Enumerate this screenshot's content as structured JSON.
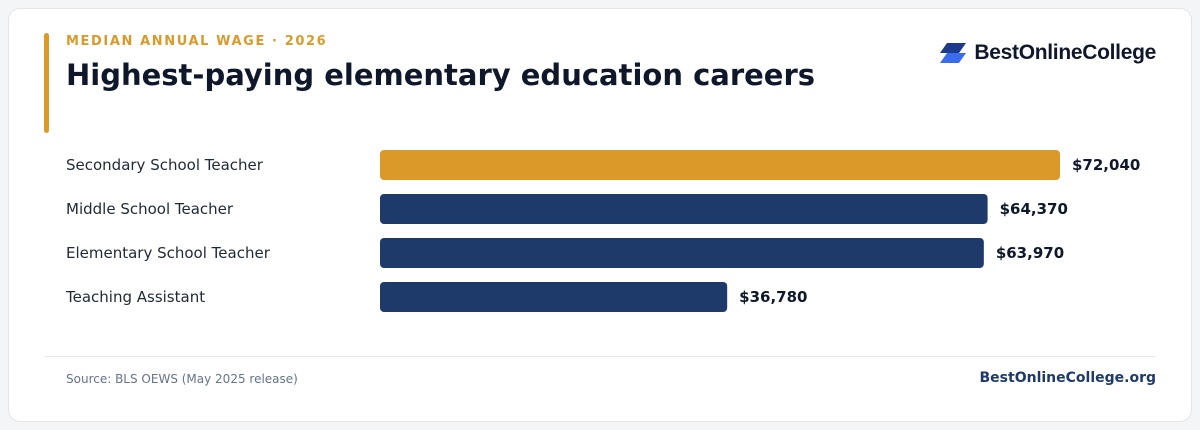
{
  "header": {
    "eyebrow": "MEDIAN ANNUAL WAGE · 2026",
    "title": "Highest-paying elementary education careers"
  },
  "brand": {
    "name": "BestOnlineCollege",
    "logo_icon": "stacked-parallelogram-logo-icon"
  },
  "colors": {
    "accent": "#db9a28",
    "bar_primary": "#1e3a6b",
    "bar_highlight": "#db9a28",
    "title_text": "#0f172a"
  },
  "chart_data": {
    "type": "bar",
    "orientation": "horizontal",
    "categories": [
      "Secondary School Teacher",
      "Middle School Teacher",
      "Elementary School Teacher",
      "Teaching Assistant"
    ],
    "values": [
      72040,
      64370,
      63970,
      36780
    ],
    "value_labels": [
      "$72,040",
      "$64,370",
      "$63,970",
      "$36,780"
    ],
    "highlight_index": 0,
    "xlim": [
      0,
      72040
    ],
    "grid": false,
    "legend": "none"
  },
  "footer": {
    "source": "Source: BLS OEWS (May 2025 release)",
    "site": "BestOnlineCollege.org"
  }
}
